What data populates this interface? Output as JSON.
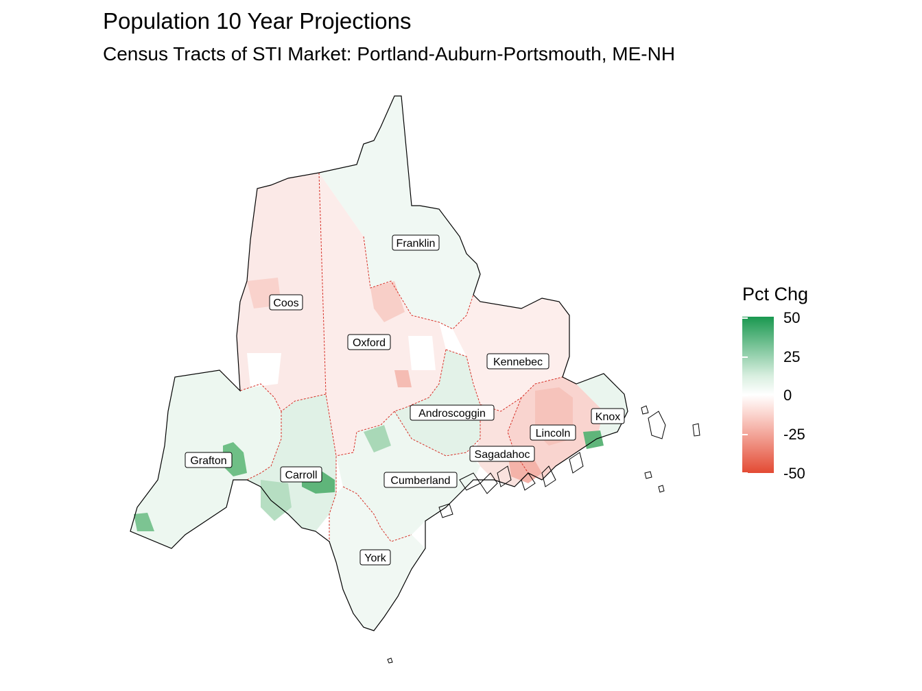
{
  "title": "Population 10 Year Projections",
  "subtitle": "Census Tracts of STI Market: Portland-Auburn-Portsmouth, ME-NH",
  "legend": {
    "title": "Pct Chg",
    "ticks": [
      "50",
      "25",
      "0",
      "-25",
      "-50"
    ],
    "range": [
      -50,
      50
    ],
    "colors": {
      "high": "#1a9850",
      "mid": "#ffffff",
      "low": "#e34a33"
    }
  },
  "counties": [
    "Franklin",
    "Coos",
    "Oxford",
    "Kennebec",
    "Androscoggin",
    "Knox",
    "Lincoln",
    "Sagadahoc",
    "Grafton",
    "Carroll",
    "Cumberland",
    "York"
  ]
}
